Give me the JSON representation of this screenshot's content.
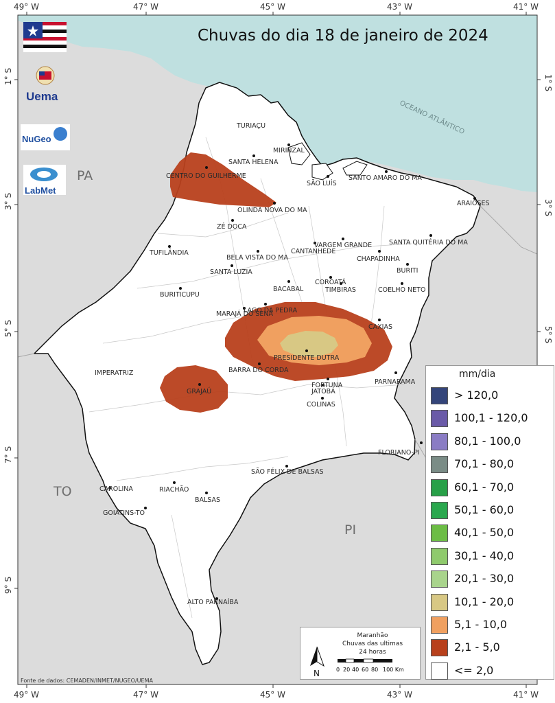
{
  "title": "Chuvas do dia 18 de janeiro de 2024",
  "grid_labels": {
    "longitudes": [
      "49° W",
      "47° W",
      "45° W",
      "43° W",
      "41° W"
    ],
    "latitudes": [
      "1° S",
      "3° S",
      "5° S",
      "7° S",
      "9° S"
    ]
  },
  "states": {
    "pa": "PA",
    "to": "TO",
    "pi": "PI"
  },
  "ocean_label": "OCEANO ATLÂNTICO",
  "logos": {
    "uema": "Uema",
    "nugeo": "NuGeo",
    "labmet": "LabMet"
  },
  "cities": {
    "turiacu": "TURIAÇU",
    "mirinzal": "MIRINZAL",
    "santa_helena": "SANTA HELENA",
    "centro_guilherme": "CENTRO DO GUILHERME",
    "sao_luis": "SÃO LUÍS",
    "santo_amaro": "SANTO AMARO DO MA",
    "araioses": "ARAIOSES",
    "olinda": "OLINDA NOVA DO MA",
    "ze_doca": "ZÉ DOCA",
    "vargem_grande": "VARGEM GRANDE",
    "santa_quiteria": "SANTA QUITÉRIA DO MA",
    "tufilandia": "TUFILÂNDIA",
    "bela_vista": "BELA VISTA DO MA",
    "cantanhede": "CANTANHEDE",
    "chapadinha": "CHAPADINHA",
    "santa_luzia": "SANTA LUZIA",
    "buriti": "BURITI",
    "coroata": "COROATÁ",
    "buriticupu": "BURITICUPU",
    "bacabal": "BACABAL",
    "timbiras": "TIMBIRAS",
    "coelho_neto": "COELHO NETO",
    "lago_pedra": "LAGO DA PEDRA",
    "maraja": "MARAJÁ DO SENA",
    "caxias": "CAXIAS",
    "presidente_dutra": "PRESIDENTE DUTRA",
    "imperatriz": "IMPERATRIZ",
    "barra_corda": "BARRA DO CORDA",
    "fortuna": "FORTUNA",
    "parnarama": "PARNARAMA",
    "jatoba": "JATOBÁ",
    "grajau": "GRAJAÚ",
    "colinas": "COLINAS",
    "floriano": "FLORIANO-PI",
    "sao_felix": "SÃO FÉLIX DE BALSAS",
    "carolina": "CAROLINA",
    "riachao": "RIACHÃO",
    "balsas": "BALSAS",
    "goiatins": "GOIATINS-TO",
    "alto_parnaiba": "ALTO PARNAÍBA"
  },
  "legend": {
    "title": "mm/dia",
    "items": [
      {
        "label": "> 120,0",
        "color": "#34457a"
      },
      {
        "label": "100,1 - 120,0",
        "color": "#6a5aa8"
      },
      {
        "label": "80,1 - 100,0",
        "color": "#8a7cc4"
      },
      {
        "label": "70,1 - 80,0",
        "color": "#7a8c86"
      },
      {
        "label": "60,1 - 70,0",
        "color": "#27a048"
      },
      {
        "label": "50,1 - 60,0",
        "color": "#2aa84e"
      },
      {
        "label": "40,1 - 50,0",
        "color": "#6cbd45"
      },
      {
        "label": "30,1 - 40,0",
        "color": "#8fca6c"
      },
      {
        "label": "20,1 - 30,0",
        "color": "#a9d48c"
      },
      {
        "label": "10,1 - 20,0",
        "color": "#d8c884"
      },
      {
        "label": "5,1 - 10,0",
        "color": "#f0a060"
      },
      {
        "label": "2,1 - 5,0",
        "color": "#b8401c"
      },
      {
        "label": "<= 2,0",
        "color": "#ffffff"
      }
    ]
  },
  "infobox": {
    "line1": "Maranhão",
    "line2": "Chuvas das ultimas",
    "line3": "24 horas",
    "north": "N",
    "scale_ticks": [
      "0",
      "20",
      "40",
      "60",
      "80",
      "100 Km"
    ]
  },
  "source": "Fonte de dados: CEMADEN/INMET/NUGEO/UEMA"
}
